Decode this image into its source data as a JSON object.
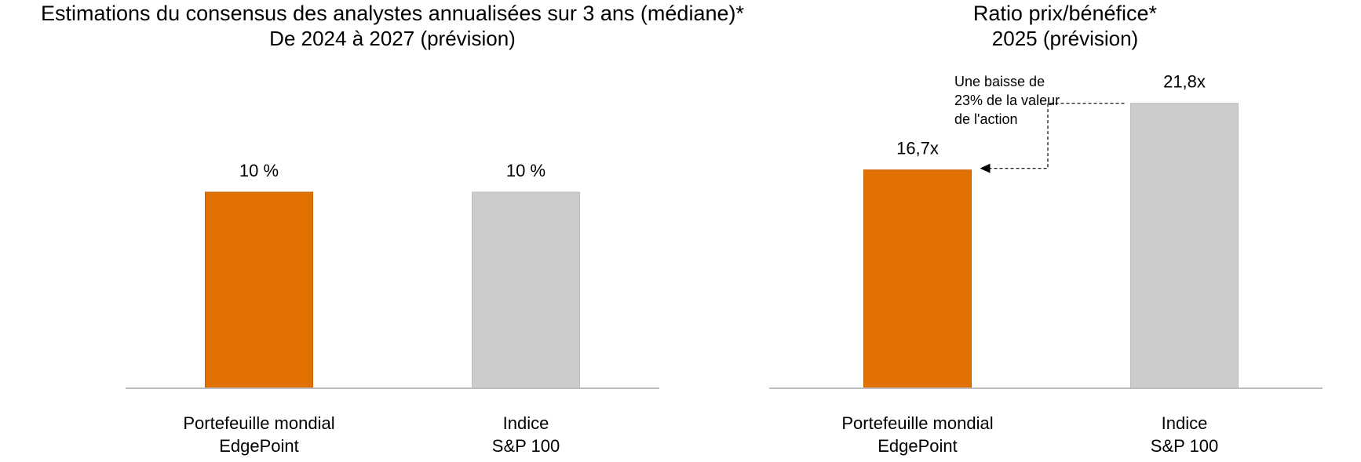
{
  "chart_data": [
    {
      "type": "bar",
      "title": "Estimations du consensus des analystes annualisées sur 3 ans (médiane)*",
      "subtitle": "De 2024 à 2027 (prévision)",
      "categories": [
        [
          "Portefeuille mondial",
          "EdgePoint"
        ],
        [
          "Indice",
          "S&P 100"
        ]
      ],
      "values": [
        10,
        10
      ],
      "value_labels": [
        "10 %",
        "10 %"
      ],
      "colors": [
        "#e07000",
        "#cccccc"
      ],
      "ylim": [
        0,
        20
      ],
      "grid": false,
      "legend": "none"
    },
    {
      "type": "bar",
      "title": "Ratio prix/bénéfice*",
      "subtitle": "2025 (prévision)",
      "categories": [
        [
          "Portefeuille mondial",
          "EdgePoint"
        ],
        [
          "Indice",
          "S&P 100"
        ]
      ],
      "values": [
        16.7,
        21.8
      ],
      "value_labels": [
        "16,7x",
        "21,8x"
      ],
      "colors": [
        "#e07000",
        "#cccccc"
      ],
      "ylim": [
        0,
        30
      ],
      "grid": false,
      "legend": "none",
      "annotation": {
        "text": [
          "Une baisse de",
          "23% de la valeur",
          "de l'action"
        ],
        "from": 1,
        "to": 0
      }
    }
  ]
}
